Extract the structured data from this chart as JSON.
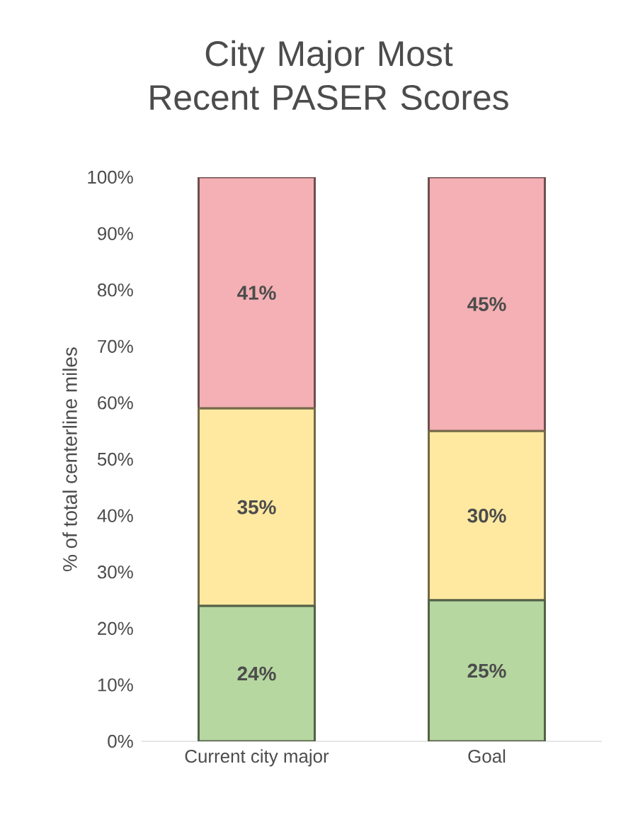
{
  "chart_data": {
    "type": "bar",
    "stacked": true,
    "title": "City Major Most Recent PASER Scores",
    "ylabel": "% of total centerline miles",
    "categories": [
      "Current city major",
      "Goal"
    ],
    "series": [
      {
        "color": "#b6d7a0",
        "values": [
          24,
          25
        ],
        "value_labels": [
          "24%",
          "25%"
        ]
      },
      {
        "color": "#ffe9a0",
        "values": [
          35,
          30
        ],
        "value_labels": [
          "35%",
          "30%"
        ]
      },
      {
        "color": "#f4b0b4",
        "values": [
          41,
          45
        ],
        "value_labels": [
          "41%",
          "45%"
        ]
      }
    ],
    "ylim": [
      0,
      100
    ],
    "yticks": [
      {
        "value": 0,
        "label": "0%"
      },
      {
        "value": 10,
        "label": "10%"
      },
      {
        "value": 20,
        "label": "20%"
      },
      {
        "value": 30,
        "label": "30%"
      },
      {
        "value": 40,
        "label": "40%"
      },
      {
        "value": 50,
        "label": "50%"
      },
      {
        "value": 60,
        "label": "60%"
      },
      {
        "value": 70,
        "label": "70%"
      },
      {
        "value": 80,
        "label": "80%"
      },
      {
        "value": 90,
        "label": "90%"
      },
      {
        "value": 100,
        "label": "100%"
      }
    ],
    "grid": false
  }
}
